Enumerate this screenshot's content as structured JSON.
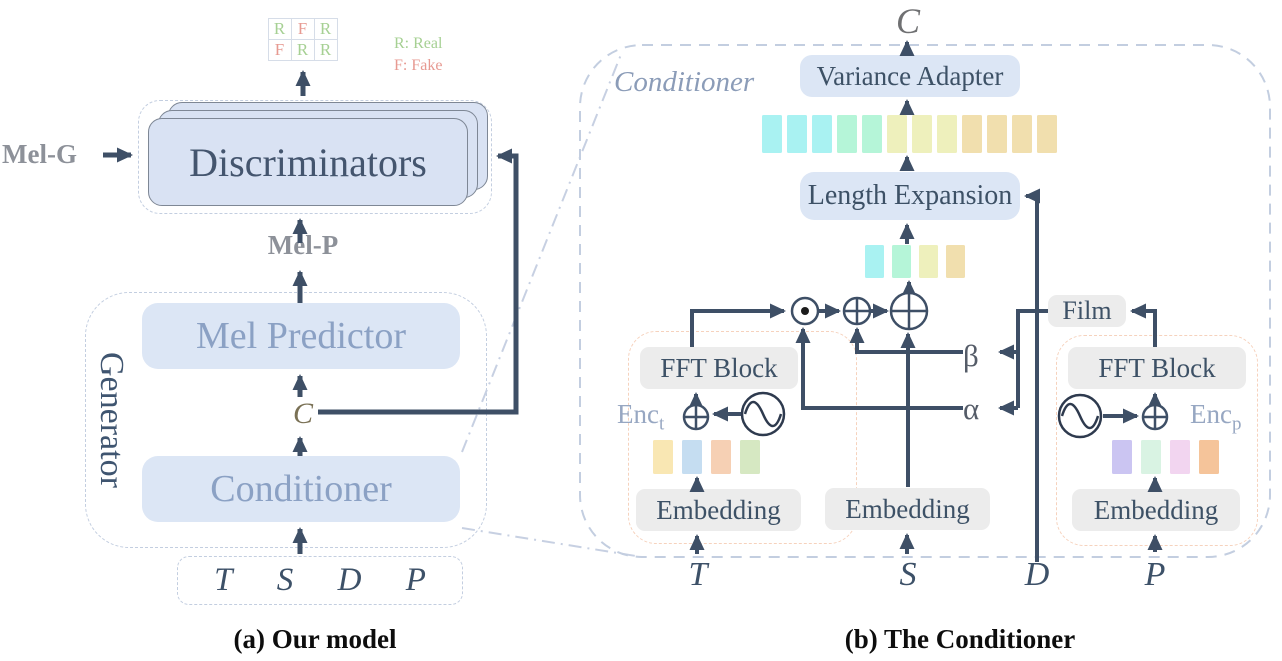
{
  "figure": {
    "caption_a": "(a) Our model",
    "caption_b": "(b) The Conditioner"
  },
  "left": {
    "grid_rows": [
      [
        "R",
        "F",
        "R"
      ],
      [
        "F",
        "R",
        "R"
      ]
    ],
    "legend": {
      "real": "R: Real",
      "fake": "F: Fake"
    },
    "mel_g": "Mel-G",
    "mel_p": "Mel-P",
    "discriminators": "Discriminators",
    "generator": "Generator",
    "mel_predictor": "Mel Predictor",
    "conditioner": "Conditioner",
    "c_label": "C",
    "inputs": [
      "T",
      "S",
      "D",
      "P"
    ]
  },
  "right": {
    "panel_label": "Conditioner",
    "c_label": "C",
    "variance_adapter": "Variance Adapter",
    "length_expansion": "Length Expansion",
    "film": "Film",
    "beta": "β",
    "alpha": "α",
    "s_embedding": "Embedding",
    "expanded_bars": [
      "#a9f2f2",
      "#a9f2f2",
      "#a9f2f2",
      "#b5f5d8",
      "#b5f5d8",
      "#eef0bc",
      "#eef0bc",
      "#eef0bc",
      "#f1dfae",
      "#f1dfae",
      "#f1dfae",
      "#f1dfae"
    ],
    "condensed_bars": [
      "#a9f2f2",
      "#b5f5d8",
      "#eef0bc",
      "#f1dfae"
    ],
    "enc_t": {
      "label": "Enc",
      "sub": "t",
      "fft_block": "FFT Block",
      "embedding": "Embedding",
      "bar_colors": [
        "#f9e7b3",
        "#c5ddf1",
        "#f6d0b4",
        "#d6e8c2"
      ]
    },
    "enc_p": {
      "label": "Enc",
      "sub": "p",
      "fft_block": "FFT Block",
      "embedding": "Embedding",
      "bar_colors": [
        "#cbc5f2",
        "#d9f3e3",
        "#f2d5f0",
        "#f5c49a"
      ]
    },
    "inputs": {
      "t": "T",
      "s": "S",
      "d": "D",
      "p": "P"
    }
  },
  "colors": {
    "arrow": "#3e4f66",
    "box_blue": "#dce6f5",
    "box_gray": "#ececec",
    "dashed_blue": "#c3cee0",
    "dashed_peach": "#f6d2bd",
    "real_green": "#a6d093",
    "fake_red": "#e79a92"
  }
}
